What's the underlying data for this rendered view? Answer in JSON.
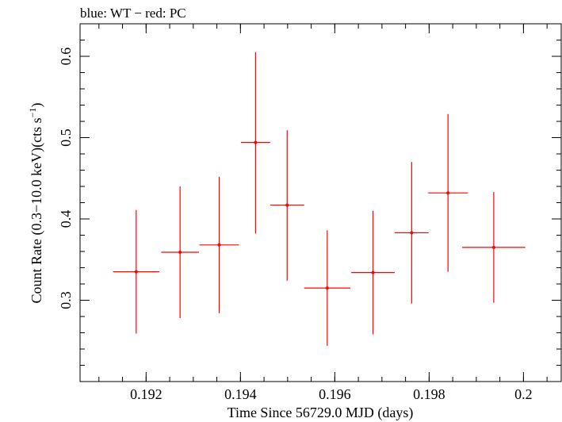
{
  "chart_data": {
    "type": "scatter",
    "title": "blue: WT − red: PC",
    "xlabel": "Time Since 56729.0 MJD (days)",
    "ylabel_main": "Count Rate (0.3−10.0 keV)(cts s",
    "ylabel_sup": "−1",
    "ylabel_close": ")",
    "xlim": [
      0.1906,
      0.2008
    ],
    "ylim": [
      0.2,
      0.64
    ],
    "x_ticks": [
      {
        "value": 0.192,
        "label": "0.192"
      },
      {
        "value": 0.194,
        "label": "0.194"
      },
      {
        "value": 0.196,
        "label": "0.196"
      },
      {
        "value": 0.198,
        "label": "0.198"
      },
      {
        "value": 0.2,
        "label": "0.2"
      }
    ],
    "x_minor_step": 0.0005,
    "y_ticks": [
      {
        "value": 0.3,
        "label": "0.3"
      },
      {
        "value": 0.4,
        "label": "0.4"
      },
      {
        "value": 0.5,
        "label": "0.5"
      },
      {
        "value": 0.6,
        "label": "0.6"
      }
    ],
    "y_minor_step": 0.02,
    "grid": false,
    "series": [
      {
        "color": "#ff0000",
        "points": [
          {
            "x": 0.19179,
            "xerr_low": 0.00049,
            "xerr_high": 0.00049,
            "y": 0.335,
            "yerr_low": 0.076,
            "yerr_high": 0.076
          },
          {
            "x": 0.19272,
            "xerr_low": 0.0004,
            "xerr_high": 0.0004,
            "y": 0.359,
            "yerr_low": 0.081,
            "yerr_high": 0.081
          },
          {
            "x": 0.19355,
            "xerr_low": 0.00042,
            "xerr_high": 0.00042,
            "y": 0.368,
            "yerr_low": 0.084,
            "yerr_high": 0.084
          },
          {
            "x": 0.19432,
            "xerr_low": 0.00031,
            "xerr_high": 0.00031,
            "y": 0.494,
            "yerr_low": 0.112,
            "yerr_high": 0.111
          },
          {
            "x": 0.19499,
            "xerr_low": 0.00036,
            "xerr_high": 0.00036,
            "y": 0.417,
            "yerr_low": 0.093,
            "yerr_high": 0.092
          },
          {
            "x": 0.19584,
            "xerr_low": 0.00049,
            "xerr_high": 0.00049,
            "y": 0.315,
            "yerr_low": 0.071,
            "yerr_high": 0.071
          },
          {
            "x": 0.19681,
            "xerr_low": 0.00046,
            "xerr_high": 0.00046,
            "y": 0.334,
            "yerr_low": 0.076,
            "yerr_high": 0.076
          },
          {
            "x": 0.19763,
            "xerr_low": 0.00036,
            "xerr_high": 0.00036,
            "y": 0.383,
            "yerr_low": 0.087,
            "yerr_high": 0.087
          },
          {
            "x": 0.1984,
            "xerr_low": 0.00042,
            "xerr_high": 0.00042,
            "y": 0.432,
            "yerr_low": 0.097,
            "yerr_high": 0.097
          },
          {
            "x": 0.19937,
            "xerr_low": 0.00067,
            "xerr_high": 0.00067,
            "y": 0.365,
            "yerr_low": 0.068,
            "yerr_high": 0.068
          }
        ]
      }
    ]
  }
}
